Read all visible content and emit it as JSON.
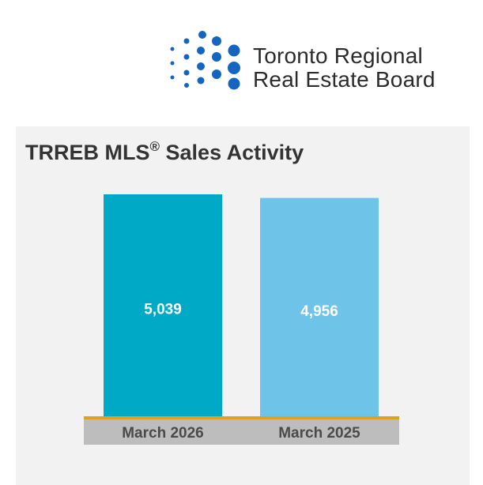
{
  "logo": {
    "line1": "Toronto Regional",
    "line2": "Real Estate Board",
    "dot_color": "#1565c0"
  },
  "title": {
    "main": "TRREB MLS",
    "sup": "®",
    "rest": " Sales Activity"
  },
  "chart_data": {
    "type": "bar",
    "categories": [
      "March 2026",
      "March 2025"
    ],
    "values": [
      5039,
      4956
    ],
    "value_labels": [
      "5,039",
      "4,956"
    ],
    "colors": [
      "#00a9c6",
      "#6ec3e8"
    ],
    "ylim": [
      0,
      5039
    ],
    "baseline_color": "#d9a521",
    "category_band_color": "#bdbdbd",
    "grid": false,
    "legend": "none"
  }
}
